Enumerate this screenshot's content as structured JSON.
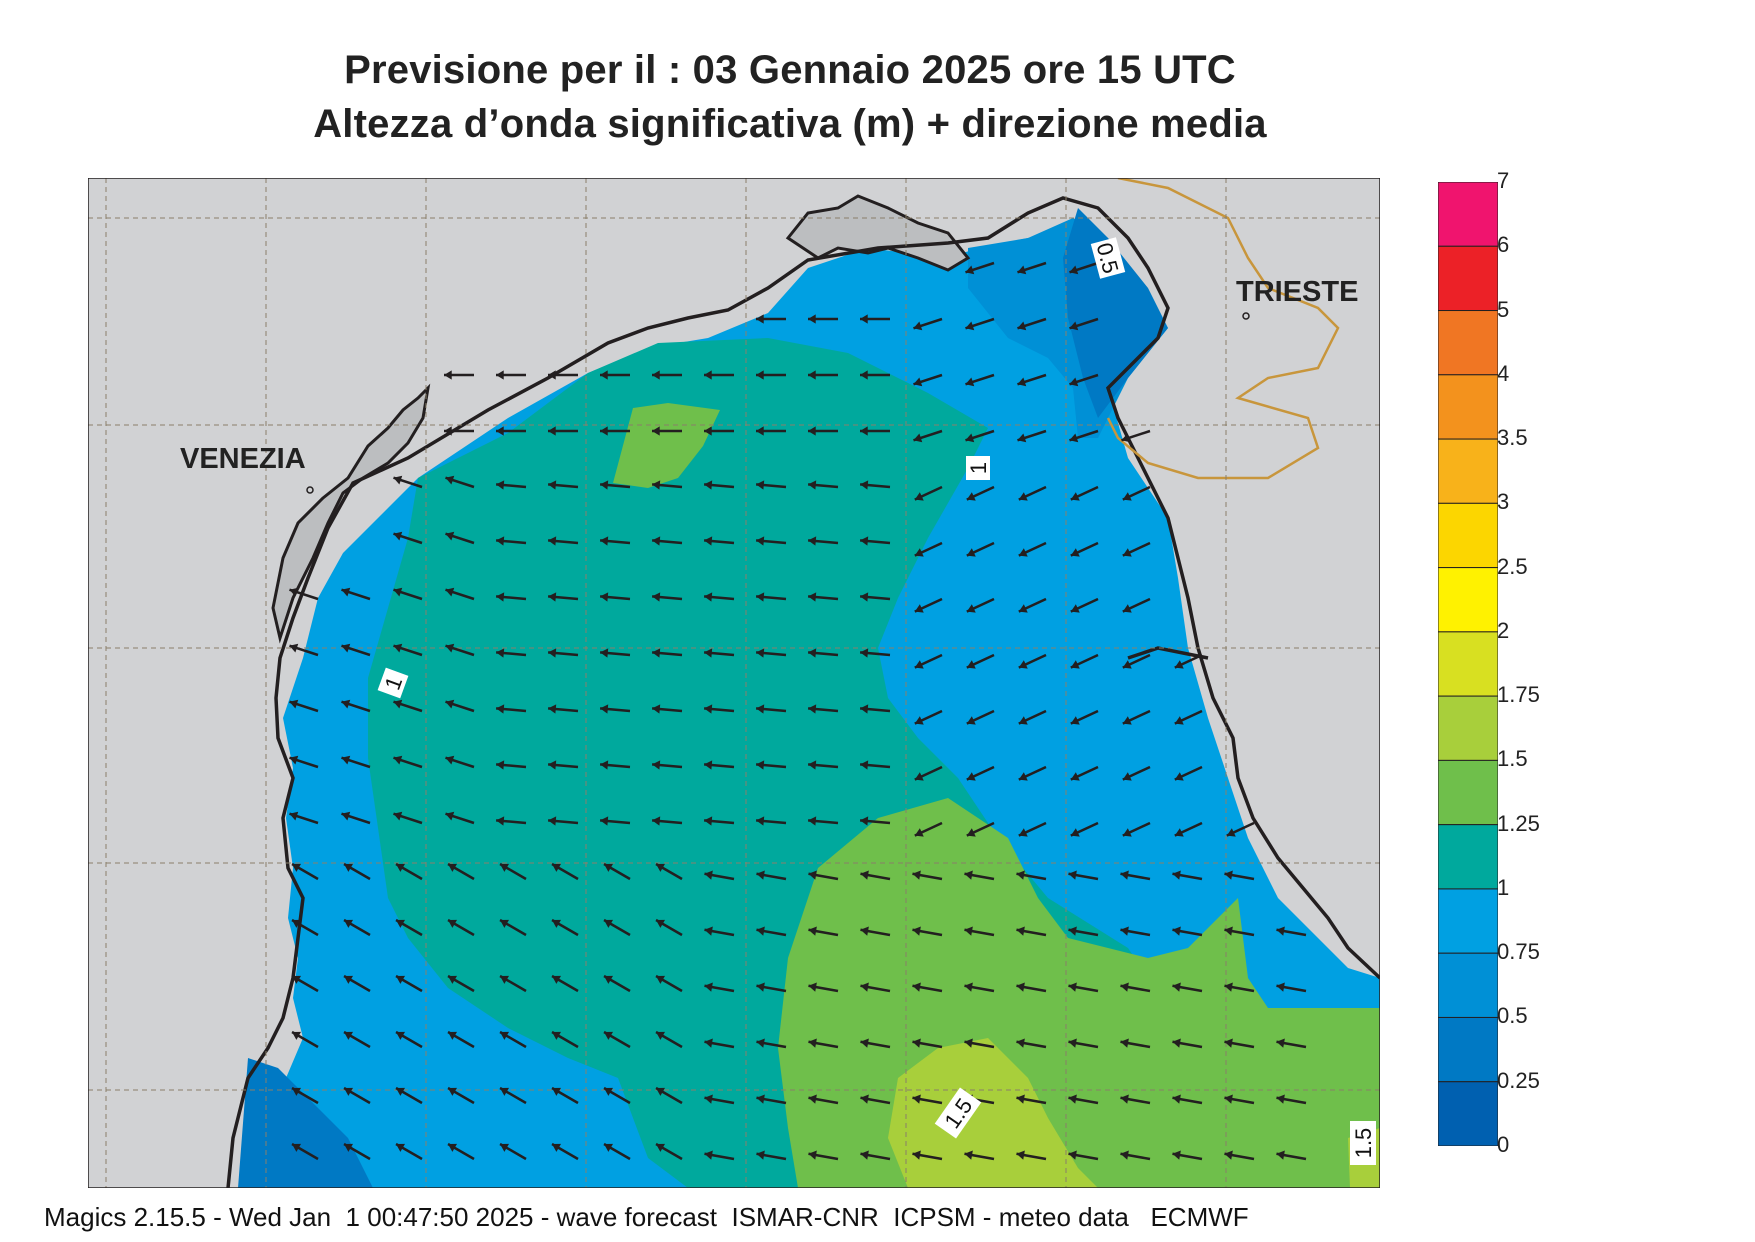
{
  "title": {
    "line1": "Previsione per il  :  03  Gennaio  2025   ore 15 UTC",
    "line2": "Altezza d’onda significativa (m) + direzione media"
  },
  "cities": {
    "venezia": "VENEZIA",
    "trieste": "TRIESTE"
  },
  "contour_labels": [
    "0.5",
    "1",
    "1",
    "1.5",
    "1.5"
  ],
  "legend": {
    "labels": [
      "7",
      "6",
      "5",
      "4",
      "3.5",
      "3",
      "2.5",
      "2",
      "1.75",
      "1.5",
      "1.25",
      "1",
      "0.75",
      "0.5",
      "0.25",
      "0"
    ],
    "colors": [
      "#f0146e",
      "#ec2127",
      "#f07623",
      "#f3921d",
      "#f8b21a",
      "#fcd600",
      "#fff200",
      "#d8e021",
      "#a8cf3b",
      "#6fbf4b",
      "#00a99d",
      "#00a0e2",
      "#0090d6",
      "#0079c4",
      "#0060b0"
    ]
  },
  "colors": {
    "land": "#d1d2d4",
    "land_lagoon": "#bcbec0",
    "border": "#c8963c",
    "arrow": "#231f20"
  },
  "footer": "Magics 2.15.5 - Wed Jan  1 00:47:50 2025 - wave forecast  ISMAR-CNR  ICPSM - meteo data   ECMWF"
}
